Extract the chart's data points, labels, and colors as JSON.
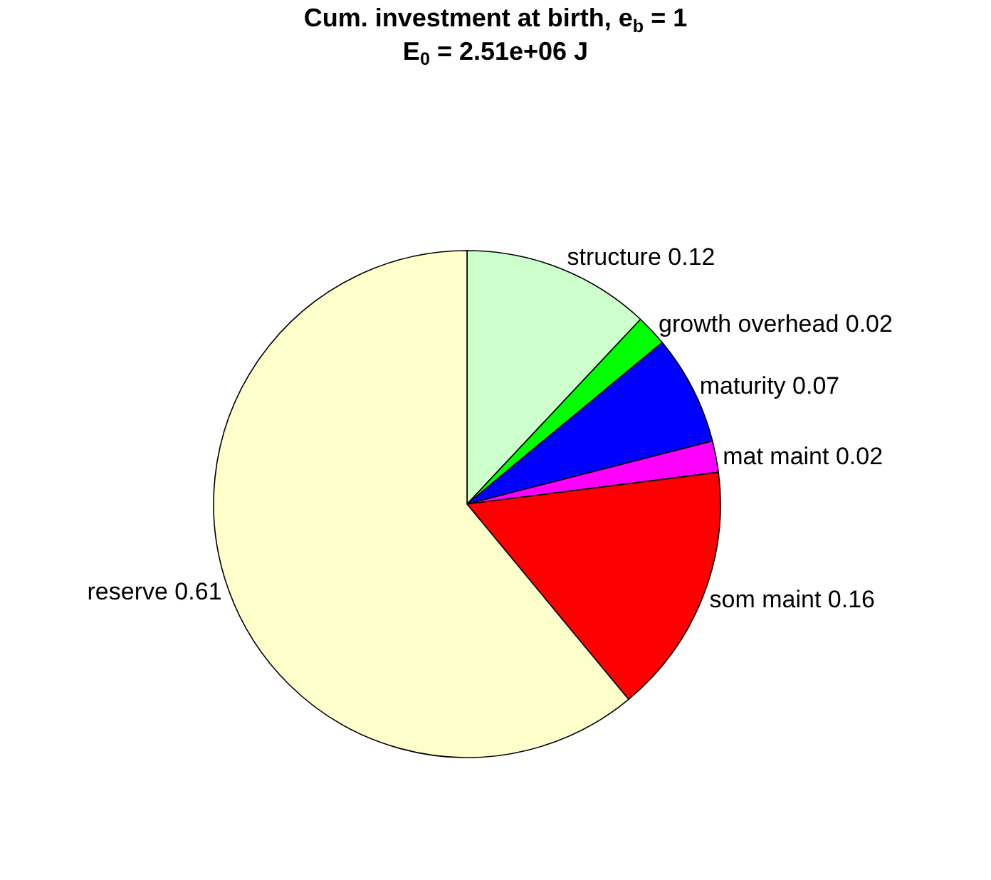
{
  "chart_data": {
    "type": "pie",
    "title": "Cum. investment at birth, e$_{b}$ = 1",
    "subtitle": "E$_{0}$ = 2.51e+06 J",
    "categories": [
      "structure 0.12",
      "growth overhead 0.02",
      "maturity 0.07",
      "mat maint 0.02",
      "som maint 0.16",
      "reserve 0.61"
    ],
    "values": [
      0.12,
      0.02,
      0.07,
      0.02,
      0.16,
      0.61
    ],
    "colors": [
      "#ccffcc",
      "#00ff00",
      "#0000ff",
      "#ff00ff",
      "#ff0000",
      "#ffffcc"
    ],
    "legend": false
  }
}
